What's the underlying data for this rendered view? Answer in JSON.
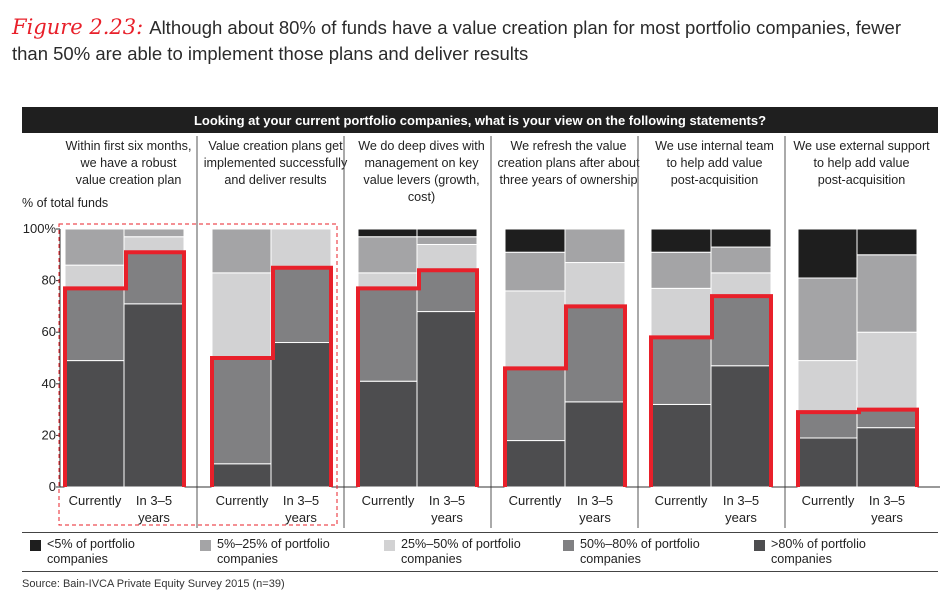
{
  "figure": {
    "label": "Figure 2.23:",
    "title": "Although about 80% of funds have a value creation plan for most portfolio companies, fewer than 50% are able to implement those plans and deliver results"
  },
  "header": "Looking at your current portfolio companies, what is your view on the following statements?",
  "source": "Source: Bain-IVCA Private Equity Survey 2015 (n=39)",
  "chart_data": {
    "type": "bar",
    "stacked": true,
    "ylabel": "% of total funds",
    "ylim": [
      0,
      100
    ],
    "yticks": [
      "0",
      "20",
      "40",
      "60",
      "80",
      "100%"
    ],
    "colors": {
      "gt80": "#4d4d4f",
      "p50_80": "#808082",
      "p25_50": "#d2d2d3",
      "p5_25": "#a4a4a6",
      "lt5": "#1e1e1e",
      "highlight": "#e8202a",
      "dashed_box": "#e8202a"
    },
    "legend": [
      {
        "key": "lt5",
        "label": "<5% of portfolio companies",
        "line1": "<5% of portfolio",
        "line2": "companies"
      },
      {
        "key": "p5_25",
        "label": "5%–25% of portfolio companies",
        "line1": "5%–25% of portfolio",
        "line2": "companies"
      },
      {
        "key": "p25_50",
        "label": "25%–50% of portfolio companies",
        "line1": "25%–50% of portfolio",
        "line2": "companies"
      },
      {
        "key": "p50_80",
        "label": "50%–80% of portfolio companies",
        "line1": "50%–80% of portfolio",
        "line2": "companies"
      },
      {
        "key": "gt80",
        "label": ">80% of portfolio companies",
        "line1": ">80% of portfolio",
        "line2": "companies"
      }
    ],
    "stack_order": [
      "gt80",
      "p50_80",
      "p25_50",
      "p5_25",
      "lt5"
    ],
    "groups": [
      {
        "statement": [
          "Within first six months,",
          "we have a robust",
          "value creation plan"
        ],
        "highlighted_box": true,
        "bars": [
          {
            "label": [
              "Currently"
            ],
            "values": {
              "gt80": 49,
              "p50_80": 28,
              "p25_50": 9,
              "p5_25": 14,
              "lt5": 0
            }
          },
          {
            "label": [
              "In 3–5",
              "years"
            ],
            "values": {
              "gt80": 71,
              "p50_80": 20,
              "p25_50": 6,
              "p5_25": 3,
              "lt5": 0
            }
          }
        ]
      },
      {
        "statement": [
          "Value creation plans get",
          "implemented successfully",
          "and deliver results"
        ],
        "highlighted_box": true,
        "bars": [
          {
            "label": [
              "Currently"
            ],
            "values": {
              "gt80": 9,
              "p50_80": 41,
              "p25_50": 33,
              "p5_25": 17,
              "lt5": 0
            }
          },
          {
            "label": [
              "In 3–5",
              "years"
            ],
            "values": {
              "gt80": 56,
              "p50_80": 29,
              "p25_50": 15,
              "p5_25": 0,
              "lt5": 0
            }
          }
        ]
      },
      {
        "statement": [
          "We do deep dives with",
          "management on key",
          "value levers (growth, cost)"
        ],
        "highlighted_box": false,
        "bars": [
          {
            "label": [
              "Currently"
            ],
            "values": {
              "gt80": 41,
              "p50_80": 36,
              "p25_50": 6,
              "p5_25": 14,
              "lt5": 3
            }
          },
          {
            "label": [
              "In 3–5",
              "years"
            ],
            "values": {
              "gt80": 68,
              "p50_80": 16,
              "p25_50": 10,
              "p5_25": 3,
              "lt5": 3
            }
          }
        ]
      },
      {
        "statement": [
          "We refresh the value",
          "creation plans after about",
          "three years of ownership"
        ],
        "highlighted_box": false,
        "bars": [
          {
            "label": [
              "Currently"
            ],
            "values": {
              "gt80": 18,
              "p50_80": 28,
              "p25_50": 30,
              "p5_25": 15,
              "lt5": 9
            }
          },
          {
            "label": [
              "In 3–5",
              "years"
            ],
            "values": {
              "gt80": 33,
              "p50_80": 37,
              "p25_50": 17,
              "p5_25": 13,
              "lt5": 0
            }
          }
        ]
      },
      {
        "statement": [
          "We use internal team",
          "to help add value",
          "post-acquisition"
        ],
        "highlighted_box": false,
        "bars": [
          {
            "label": [
              "Currently"
            ],
            "values": {
              "gt80": 32,
              "p50_80": 26,
              "p25_50": 19,
              "p5_25": 14,
              "lt5": 9
            }
          },
          {
            "label": [
              "In 3–5",
              "years"
            ],
            "values": {
              "gt80": 47,
              "p50_80": 27,
              "p25_50": 9,
              "p5_25": 10,
              "lt5": 7
            }
          }
        ]
      },
      {
        "statement": [
          "We use external support",
          "to help add value",
          "post-acquisition"
        ],
        "highlighted_box": false,
        "bars": [
          {
            "label": [
              "Currently"
            ],
            "values": {
              "gt80": 19,
              "p50_80": 10,
              "p25_50": 20,
              "p5_25": 32,
              "lt5": 19
            }
          },
          {
            "label": [
              "In 3–5",
              "years"
            ],
            "values": {
              "gt80": 23,
              "p50_80": 7,
              "p25_50": 30,
              "p5_25": 30,
              "lt5": 10
            }
          }
        ]
      }
    ]
  }
}
